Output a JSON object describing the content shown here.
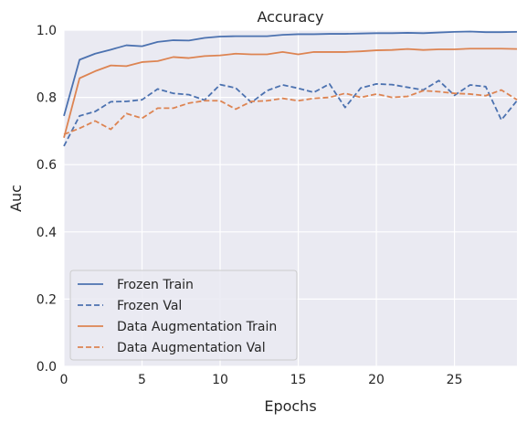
{
  "chart_data": {
    "type": "line",
    "title": "Accuracy",
    "xlabel": "Epochs",
    "ylabel": "Auc",
    "xlim": [
      0,
      29
    ],
    "ylim": [
      0.0,
      1.0
    ],
    "xticks": [
      0,
      5,
      10,
      15,
      20,
      25
    ],
    "yticks": [
      0.0,
      0.2,
      0.4,
      0.6,
      0.8,
      1.0
    ],
    "grid": true,
    "legend_position": "lower-left",
    "background": "#eaeaf2",
    "x": [
      0,
      1,
      2,
      3,
      4,
      5,
      6,
      7,
      8,
      9,
      10,
      11,
      12,
      13,
      14,
      15,
      16,
      17,
      18,
      19,
      20,
      21,
      22,
      23,
      24,
      25,
      26,
      27,
      28,
      29
    ],
    "series": [
      {
        "name": "Frozen Train",
        "color": "#4c72b0",
        "style": "solid",
        "values": [
          0.745,
          0.912,
          0.93,
          0.942,
          0.955,
          0.952,
          0.965,
          0.97,
          0.969,
          0.977,
          0.981,
          0.982,
          0.982,
          0.982,
          0.986,
          0.988,
          0.988,
          0.989,
          0.989,
          0.99,
          0.991,
          0.991,
          0.992,
          0.991,
          0.993,
          0.995,
          0.996,
          0.994,
          0.994,
          0.995
        ]
      },
      {
        "name": "Frozen Val",
        "color": "#4c72b0",
        "style": "dashed",
        "values": [
          0.655,
          0.745,
          0.758,
          0.787,
          0.788,
          0.793,
          0.825,
          0.812,
          0.808,
          0.792,
          0.838,
          0.828,
          0.785,
          0.82,
          0.837,
          0.827,
          0.815,
          0.84,
          0.77,
          0.828,
          0.84,
          0.838,
          0.83,
          0.822,
          0.85,
          0.806,
          0.837,
          0.832,
          0.733,
          0.79
        ]
      },
      {
        "name": "Data Augmentation Train",
        "color": "#dd8452",
        "style": "solid",
        "values": [
          0.68,
          0.857,
          0.878,
          0.895,
          0.893,
          0.905,
          0.908,
          0.92,
          0.917,
          0.923,
          0.925,
          0.93,
          0.928,
          0.928,
          0.935,
          0.928,
          0.935,
          0.935,
          0.935,
          0.937,
          0.94,
          0.941,
          0.944,
          0.941,
          0.943,
          0.943,
          0.945,
          0.945,
          0.945,
          0.944
        ]
      },
      {
        "name": "Data Augmentation Val",
        "color": "#dd8452",
        "style": "dashed",
        "values": [
          0.69,
          0.708,
          0.73,
          0.705,
          0.752,
          0.738,
          0.768,
          0.768,
          0.783,
          0.79,
          0.79,
          0.765,
          0.788,
          0.79,
          0.797,
          0.79,
          0.797,
          0.8,
          0.812,
          0.8,
          0.81,
          0.8,
          0.803,
          0.82,
          0.817,
          0.812,
          0.81,
          0.805,
          0.822,
          0.793
        ]
      }
    ]
  }
}
